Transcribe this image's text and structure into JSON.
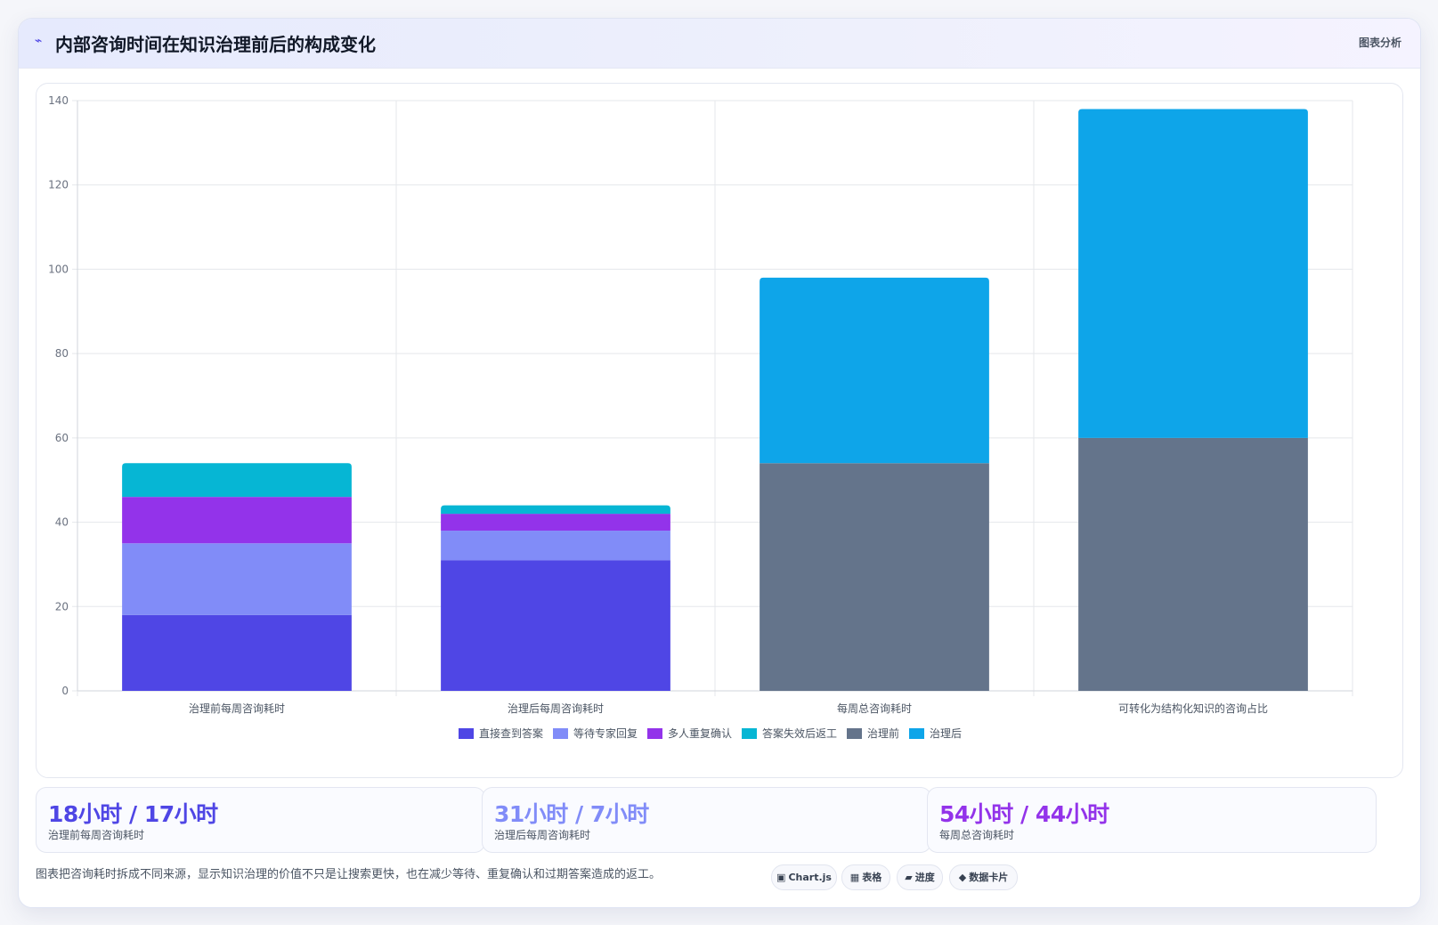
{
  "header": {
    "icon": "activity-icon",
    "title": "内部咨询时间在知识治理前后的构成变化",
    "tag": "图表分析"
  },
  "chart_data": {
    "type": "bar",
    "stacked": true,
    "categories": [
      "治理前每周咨询耗时",
      "治理后每周咨询耗时",
      "每周总咨询耗时",
      "可转化为结构化知识的咨询占比"
    ],
    "ylim": [
      0,
      140
    ],
    "yticks": [
      0,
      20,
      40,
      60,
      80,
      100,
      120,
      140
    ],
    "grid": true,
    "legend_position": "bottom",
    "series": [
      {
        "name": "直接查到答案",
        "color": "#4f46e5",
        "values": [
          18,
          31,
          null,
          null
        ]
      },
      {
        "name": "等待专家回复",
        "color": "#818cf8",
        "values": [
          17,
          7,
          null,
          null
        ]
      },
      {
        "name": "多人重复确认",
        "color": "#9333ea",
        "values": [
          11,
          4,
          null,
          null
        ]
      },
      {
        "name": "答案失效后返工",
        "color": "#06b6d4",
        "values": [
          8,
          2,
          null,
          null
        ]
      },
      {
        "name": "治理前",
        "color": "#64748b",
        "values": [
          null,
          null,
          54,
          60
        ]
      },
      {
        "name": "治理后",
        "color": "#0ea5e9",
        "values": [
          null,
          null,
          44,
          78
        ]
      }
    ]
  },
  "stats": [
    {
      "value": "18小时 / 17小时",
      "label": "治理前每周咨询耗时",
      "color": "#4f46e5"
    },
    {
      "value": "31小时 / 7小时",
      "label": "治理后每周咨询耗时",
      "color": "#818cf8"
    },
    {
      "value": "54小时 / 44小时",
      "label": "每周总咨询耗时",
      "color": "#9333ea"
    }
  ],
  "footer": {
    "description": "图表把咨询耗时拆成不同来源，显示知识治理的价值不只是让搜索更快，也在减少等待、重复确认和过期答案造成的返工。"
  },
  "chips": [
    {
      "icon": "chart-icon",
      "glyph": "▣",
      "label": "Chart.js"
    },
    {
      "icon": "table-icon",
      "glyph": "▦",
      "label": "表格"
    },
    {
      "icon": "progress-icon",
      "glyph": "▰",
      "label": "进度"
    },
    {
      "icon": "card-icon",
      "glyph": "◆",
      "label": "数据卡片"
    }
  ]
}
